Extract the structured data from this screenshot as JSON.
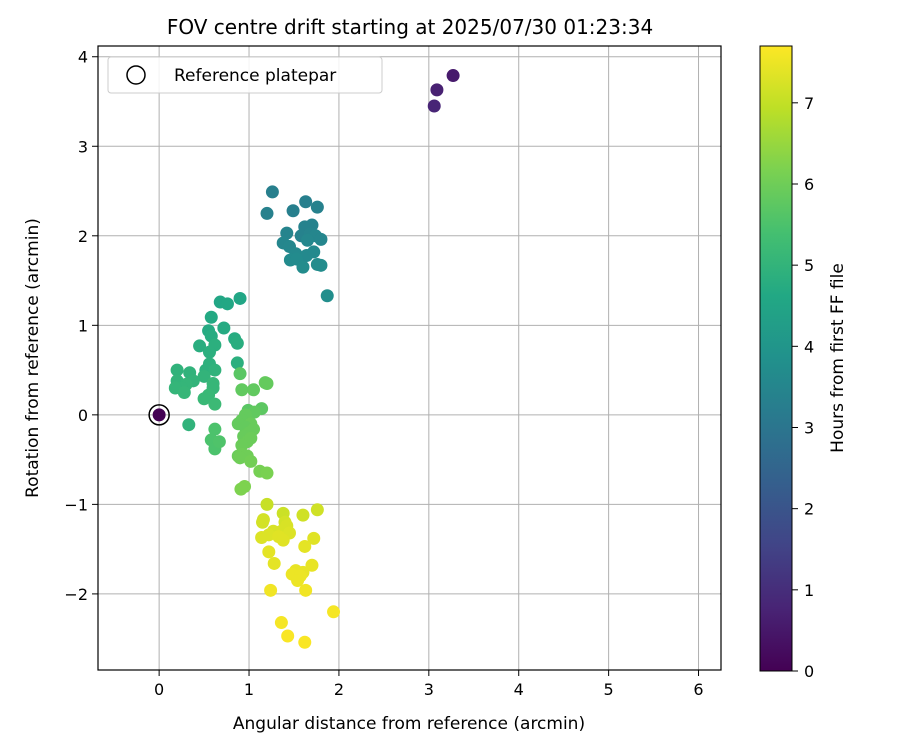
{
  "chart_data": {
    "type": "scatter",
    "title": "FOV centre drift starting at 2025/07/30 01:23:34",
    "xlabel": "Angular distance from reference (arcmin)",
    "ylabel": "Rotation from reference (arcmin)",
    "xlim": [
      -0.68,
      6.25
    ],
    "ylim": [
      -2.85,
      4.12
    ],
    "xticks": [
      0,
      1,
      2,
      3,
      4,
      5,
      6
    ],
    "yticks": [
      -2,
      -1,
      0,
      1,
      2,
      3,
      4
    ],
    "grid": true,
    "legend_position": "top-left",
    "legend": [
      {
        "label": "Reference platepar",
        "marker": "open-circle"
      }
    ],
    "colorbar": {
      "label": "Hours from first FF file",
      "colormap": "viridis",
      "range": [
        0,
        7.7
      ],
      "ticks": [
        0,
        1,
        2,
        3,
        4,
        5,
        6,
        7
      ]
    },
    "reference_point": {
      "x": 0,
      "y": 0,
      "hours": 0
    },
    "points": [
      [
        3.27,
        3.79,
        0.55
      ],
      [
        3.09,
        3.63,
        0.7
      ],
      [
        3.06,
        3.45,
        0.8
      ],
      [
        1.26,
        2.49,
        3.3
      ],
      [
        1.63,
        2.38,
        3.3
      ],
      [
        1.76,
        2.32,
        3.35
      ],
      [
        1.49,
        2.28,
        3.3
      ],
      [
        1.2,
        2.25,
        3.35
      ],
      [
        1.62,
        2.1,
        3.4
      ],
      [
        1.7,
        2.12,
        3.4
      ],
      [
        1.42,
        2.03,
        3.45
      ],
      [
        1.58,
        2.0,
        3.4
      ],
      [
        1.68,
        2.02,
        3.45
      ],
      [
        1.74,
        2.0,
        3.5
      ],
      [
        1.8,
        1.96,
        3.5
      ],
      [
        1.38,
        1.92,
        3.5
      ],
      [
        1.45,
        1.88,
        3.55
      ],
      [
        1.65,
        1.95,
        3.55
      ],
      [
        1.52,
        1.8,
        3.6
      ],
      [
        1.64,
        1.78,
        3.6
      ],
      [
        1.72,
        1.82,
        3.6
      ],
      [
        1.46,
        1.73,
        3.65
      ],
      [
        1.53,
        1.74,
        3.65
      ],
      [
        1.6,
        1.65,
        3.7
      ],
      [
        1.76,
        1.68,
        3.7
      ],
      [
        1.8,
        1.67,
        3.7
      ],
      [
        1.87,
        1.33,
        3.75
      ],
      [
        0.9,
        1.3,
        4.55
      ],
      [
        0.68,
        1.26,
        4.55
      ],
      [
        0.76,
        1.24,
        4.6
      ],
      [
        0.58,
        1.09,
        4.65
      ],
      [
        0.72,
        0.97,
        4.7
      ],
      [
        0.55,
        0.94,
        4.7
      ],
      [
        0.58,
        0.88,
        4.75
      ],
      [
        0.84,
        0.85,
        4.75
      ],
      [
        0.87,
        0.8,
        4.8
      ],
      [
        0.45,
        0.77,
        4.8
      ],
      [
        0.62,
        0.78,
        4.85
      ],
      [
        0.56,
        0.7,
        4.85
      ],
      [
        0.87,
        0.58,
        4.85
      ],
      [
        0.56,
        0.57,
        4.9
      ],
      [
        0.52,
        0.5,
        4.9
      ],
      [
        0.2,
        0.5,
        4.95
      ],
      [
        0.62,
        0.5,
        4.95
      ],
      [
        0.34,
        0.47,
        4.95
      ],
      [
        0.5,
        0.43,
        5.0
      ],
      [
        0.2,
        0.38,
        5.0
      ],
      [
        0.38,
        0.38,
        5.0
      ],
      [
        0.3,
        0.34,
        5.05
      ],
      [
        0.25,
        0.3,
        5.05
      ],
      [
        0.18,
        0.3,
        5.05
      ],
      [
        0.6,
        0.35,
        5.1
      ],
      [
        0.6,
        0.3,
        5.1
      ],
      [
        0.28,
        0.25,
        5.1
      ],
      [
        0.55,
        0.22,
        5.15
      ],
      [
        0.5,
        0.18,
        5.15
      ],
      [
        0.62,
        0.12,
        5.2
      ],
      [
        0.33,
        -0.11,
        4.95
      ],
      [
        0.99,
        0.05,
        5.7
      ],
      [
        0.62,
        -0.16,
        5.5
      ],
      [
        0.58,
        -0.28,
        5.5
      ],
      [
        0.62,
        -0.38,
        5.5
      ],
      [
        0.67,
        -0.3,
        5.55
      ],
      [
        0.9,
        0.46,
        5.7
      ],
      [
        0.92,
        0.28,
        5.8
      ],
      [
        1.2,
        0.35,
        5.85
      ],
      [
        1.18,
        0.36,
        5.85
      ],
      [
        1.05,
        0.28,
        5.8
      ],
      [
        1.14,
        0.07,
        5.75
      ],
      [
        1.06,
        0.03,
        5.8
      ],
      [
        0.96,
        0.0,
        5.85
      ],
      [
        0.92,
        -0.06,
        5.85
      ],
      [
        0.88,
        -0.1,
        5.85
      ],
      [
        1.02,
        -0.1,
        5.9
      ],
      [
        0.96,
        -0.14,
        5.85
      ],
      [
        1.0,
        -0.2,
        5.9
      ],
      [
        1.05,
        -0.16,
        5.9
      ],
      [
        0.94,
        -0.24,
        5.9
      ],
      [
        0.98,
        -0.3,
        5.95
      ],
      [
        1.02,
        -0.26,
        5.95
      ],
      [
        0.92,
        -0.34,
        5.95
      ],
      [
        0.88,
        -0.46,
        5.95
      ],
      [
        0.92,
        -0.44,
        6.0
      ],
      [
        0.98,
        -0.46,
        6.0
      ],
      [
        0.9,
        -0.48,
        6.0
      ],
      [
        1.02,
        -0.52,
        6.05
      ],
      [
        1.12,
        -0.63,
        6.1
      ],
      [
        1.2,
        -0.65,
        6.15
      ],
      [
        0.95,
        -0.8,
        6.2
      ],
      [
        0.91,
        -0.83,
        6.2
      ],
      [
        1.2,
        -1.0,
        7.05
      ],
      [
        1.38,
        -1.1,
        7.1
      ],
      [
        1.6,
        -1.12,
        7.15
      ],
      [
        1.76,
        -1.06,
        7.15
      ],
      [
        1.16,
        -1.17,
        7.2
      ],
      [
        1.15,
        -1.2,
        7.2
      ],
      [
        1.4,
        -1.2,
        7.2
      ],
      [
        1.42,
        -1.24,
        7.25
      ],
      [
        1.27,
        -1.3,
        7.25
      ],
      [
        1.36,
        -1.3,
        7.25
      ],
      [
        1.45,
        -1.32,
        7.3
      ],
      [
        1.22,
        -1.34,
        7.3
      ],
      [
        1.14,
        -1.37,
        7.3
      ],
      [
        1.33,
        -1.36,
        7.35
      ],
      [
        1.38,
        -1.4,
        7.35
      ],
      [
        1.72,
        -1.38,
        7.35
      ],
      [
        1.62,
        -1.47,
        7.4
      ],
      [
        1.22,
        -1.53,
        7.4
      ],
      [
        1.28,
        -1.66,
        7.4
      ],
      [
        1.7,
        -1.68,
        7.45
      ],
      [
        1.52,
        -1.74,
        7.45
      ],
      [
        1.6,
        -1.76,
        7.45
      ],
      [
        1.48,
        -1.78,
        7.5
      ],
      [
        1.57,
        -1.8,
        7.5
      ],
      [
        1.54,
        -1.85,
        7.5
      ],
      [
        1.24,
        -1.96,
        7.55
      ],
      [
        1.63,
        -1.96,
        7.55
      ],
      [
        1.94,
        -2.2,
        7.6
      ],
      [
        1.36,
        -2.32,
        7.6
      ],
      [
        1.43,
        -2.47,
        7.65
      ],
      [
        1.62,
        -2.54,
        7.65
      ]
    ]
  }
}
